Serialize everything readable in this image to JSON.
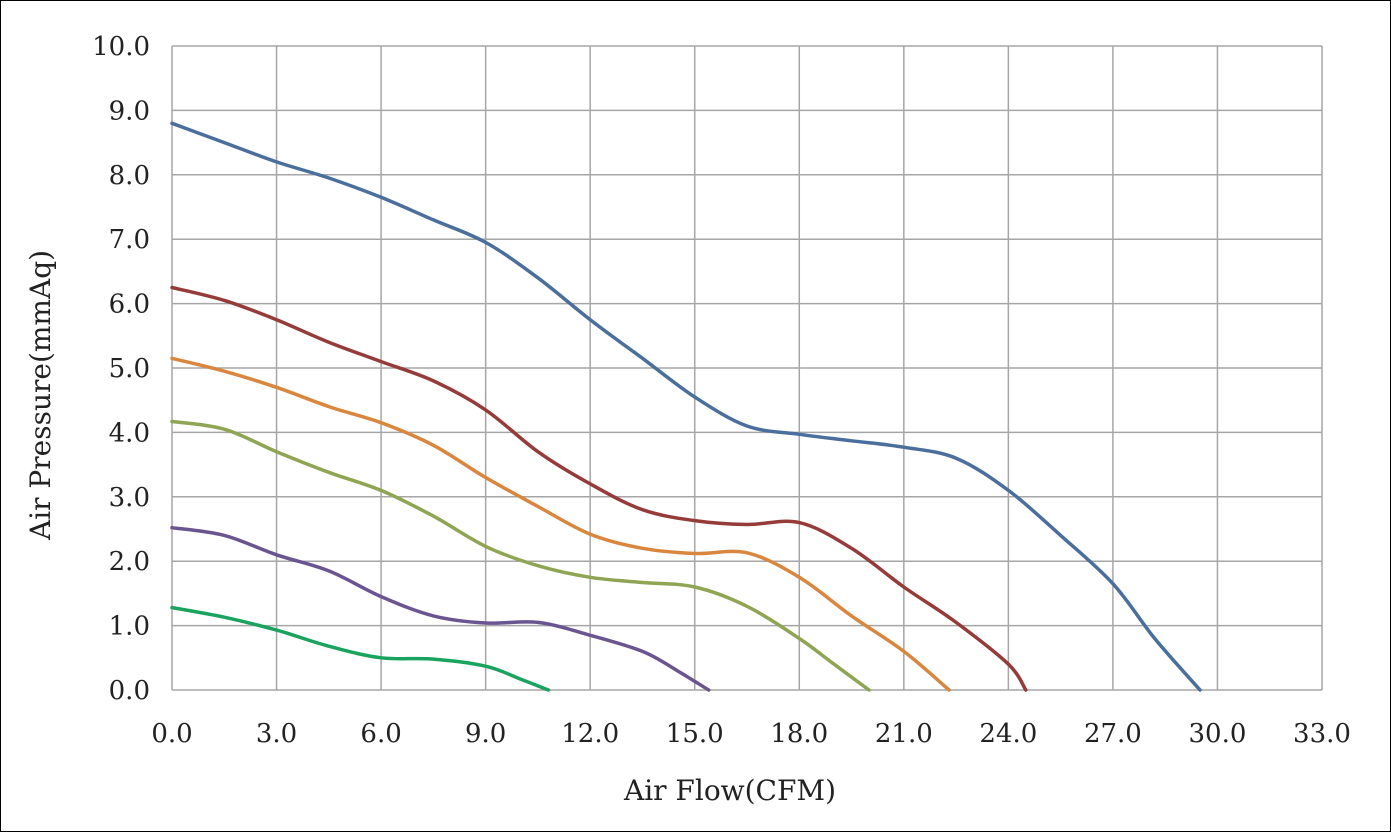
{
  "chart_data": {
    "type": "line",
    "title": "",
    "xlabel": "Air Flow(CFM)",
    "ylabel": "Air Pressure(mmAq)",
    "xlim": [
      0,
      33
    ],
    "ylim": [
      0,
      10
    ],
    "xticks": [
      "0.0",
      "3.0",
      "6.0",
      "9.0",
      "12.0",
      "15.0",
      "18.0",
      "21.0",
      "24.0",
      "27.0",
      "30.0",
      "33.0"
    ],
    "yticks": [
      "0.0",
      "1.0",
      "2.0",
      "3.0",
      "4.0",
      "5.0",
      "6.0",
      "7.0",
      "8.0",
      "9.0",
      "10.0"
    ],
    "grid": true,
    "legend": "none",
    "series": [
      {
        "color": "#4a6f9c",
        "points": [
          [
            0,
            8.8
          ],
          [
            1.5,
            8.5
          ],
          [
            3,
            8.2
          ],
          [
            4.5,
            7.95
          ],
          [
            6,
            7.65
          ],
          [
            7.5,
            7.3
          ],
          [
            9,
            6.95
          ],
          [
            10.5,
            6.4
          ],
          [
            12,
            5.75
          ],
          [
            13.5,
            5.15
          ],
          [
            15,
            4.55
          ],
          [
            16.5,
            4.1
          ],
          [
            18,
            3.97
          ],
          [
            19.5,
            3.87
          ],
          [
            21,
            3.77
          ],
          [
            22.5,
            3.6
          ],
          [
            24,
            3.1
          ],
          [
            25.5,
            2.4
          ],
          [
            27,
            1.65
          ],
          [
            28.2,
            0.8
          ],
          [
            29.5,
            0
          ]
        ]
      },
      {
        "color": "#953c3a",
        "points": [
          [
            0,
            6.25
          ],
          [
            1.5,
            6.05
          ],
          [
            3,
            5.75
          ],
          [
            4.5,
            5.4
          ],
          [
            6,
            5.1
          ],
          [
            7.5,
            4.8
          ],
          [
            9,
            4.35
          ],
          [
            10.5,
            3.7
          ],
          [
            12,
            3.2
          ],
          [
            13.5,
            2.8
          ],
          [
            15,
            2.63
          ],
          [
            16.5,
            2.57
          ],
          [
            18,
            2.6
          ],
          [
            19.5,
            2.2
          ],
          [
            21,
            1.6
          ],
          [
            22.5,
            1.05
          ],
          [
            24,
            0.4
          ],
          [
            24.5,
            0
          ]
        ]
      },
      {
        "color": "#d9863f",
        "points": [
          [
            0,
            5.15
          ],
          [
            1.5,
            4.95
          ],
          [
            3,
            4.7
          ],
          [
            4.5,
            4.4
          ],
          [
            6,
            4.15
          ],
          [
            7.5,
            3.8
          ],
          [
            9,
            3.3
          ],
          [
            10.5,
            2.85
          ],
          [
            12,
            2.42
          ],
          [
            13.5,
            2.2
          ],
          [
            15,
            2.12
          ],
          [
            16.5,
            2.13
          ],
          [
            18,
            1.75
          ],
          [
            19.5,
            1.15
          ],
          [
            21,
            0.6
          ],
          [
            22.3,
            0
          ]
        ]
      },
      {
        "color": "#8fa554",
        "points": [
          [
            0,
            4.17
          ],
          [
            1.5,
            4.05
          ],
          [
            3,
            3.7
          ],
          [
            4.5,
            3.38
          ],
          [
            6,
            3.1
          ],
          [
            7.5,
            2.7
          ],
          [
            9,
            2.23
          ],
          [
            10.5,
            1.93
          ],
          [
            12,
            1.75
          ],
          [
            13.5,
            1.67
          ],
          [
            15,
            1.6
          ],
          [
            16.5,
            1.3
          ],
          [
            18,
            0.8
          ],
          [
            19,
            0.4
          ],
          [
            20,
            0
          ]
        ]
      },
      {
        "color": "#6b5590",
        "points": [
          [
            0,
            2.52
          ],
          [
            1.5,
            2.4
          ],
          [
            3,
            2.1
          ],
          [
            4.5,
            1.85
          ],
          [
            6,
            1.45
          ],
          [
            7.5,
            1.15
          ],
          [
            9,
            1.04
          ],
          [
            10.5,
            1.05
          ],
          [
            12,
            0.85
          ],
          [
            13.5,
            0.6
          ],
          [
            14.5,
            0.3
          ],
          [
            15.4,
            0
          ]
        ]
      },
      {
        "color": "#1aa35e",
        "points": [
          [
            0,
            1.28
          ],
          [
            1.5,
            1.13
          ],
          [
            3,
            0.93
          ],
          [
            4.5,
            0.68
          ],
          [
            6,
            0.5
          ],
          [
            7.5,
            0.48
          ],
          [
            9,
            0.37
          ],
          [
            10,
            0.17
          ],
          [
            10.8,
            0
          ]
        ]
      }
    ]
  }
}
